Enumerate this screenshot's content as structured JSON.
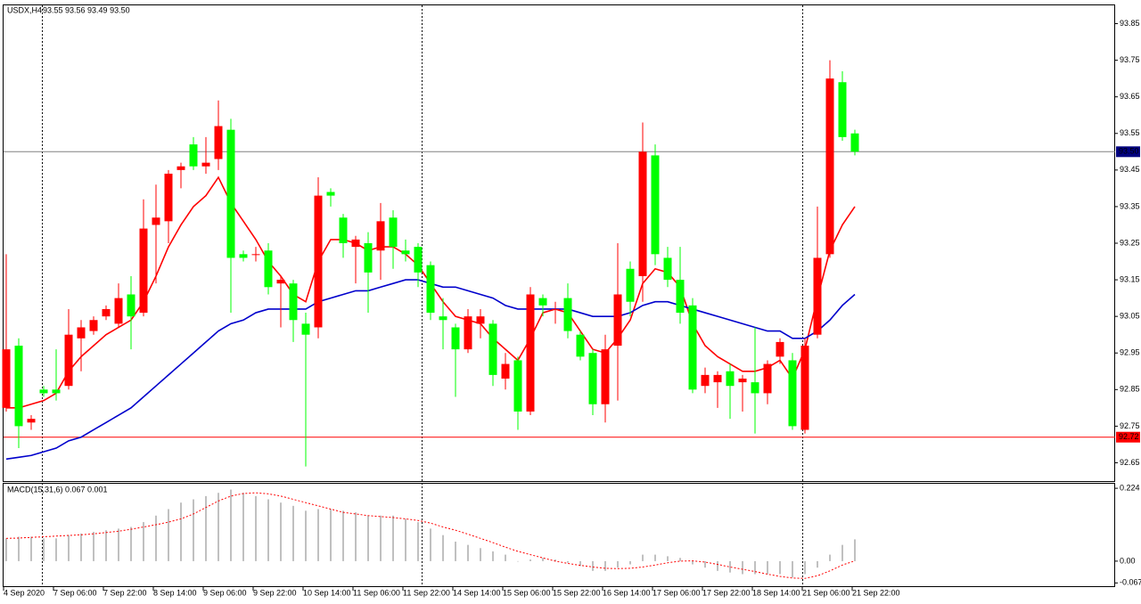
{
  "chart_data": [
    {
      "type": "candlestick",
      "title": "USDX,H4",
      "info": "93.55 93.56 93.49 93.50",
      "up_color": "#ff0000",
      "down_color": "#00ff00",
      "categories": [
        "4 Sep 2020",
        null,
        null,
        null,
        "7 Sep 06:00",
        null,
        null,
        null,
        "7 Sep 22:00",
        null,
        null,
        null,
        "8 Sep 14:00",
        null,
        null,
        null,
        "9 Sep 06:00",
        null,
        null,
        null,
        "9 Sep 22:00",
        null,
        null,
        null,
        "10 Sep 14:00",
        null,
        null,
        null,
        "11 Sep 06:00",
        null,
        null,
        null,
        "11 Sep 22:00",
        null,
        null,
        null,
        "14 Sep 14:00",
        null,
        null,
        null,
        "15 Sep 06:00",
        null,
        null,
        null,
        "15 Sep 22:00",
        null,
        null,
        null,
        "16 Sep 14:00",
        null,
        null,
        null,
        "17 Sep 06:00",
        null,
        null,
        null,
        "17 Sep 22:00",
        null,
        null,
        null,
        "18 Sep 14:00",
        null,
        null,
        null,
        "21 Sep 06:00",
        null,
        null,
        null,
        "21 Sep 22:00"
      ],
      "candles": [
        [
          92.8,
          93.22,
          92.79,
          92.96
        ],
        [
          92.97,
          92.99,
          92.69,
          92.75
        ],
        [
          92.76,
          92.78,
          92.74,
          92.77
        ],
        [
          92.85,
          92.86,
          92.83,
          92.84
        ],
        [
          92.85,
          92.96,
          92.82,
          92.84
        ],
        [
          92.86,
          93.07,
          92.85,
          93.0
        ],
        [
          92.99,
          93.04,
          92.9,
          93.02
        ],
        [
          93.01,
          93.05,
          93.0,
          93.04
        ],
        [
          93.05,
          93.08,
          93.04,
          93.07
        ],
        [
          93.03,
          93.14,
          93.02,
          93.1
        ],
        [
          93.11,
          93.16,
          92.96,
          93.05
        ],
        [
          93.06,
          93.37,
          93.05,
          93.29
        ],
        [
          93.3,
          93.41,
          93.14,
          93.32
        ],
        [
          93.31,
          93.45,
          93.25,
          93.44
        ],
        [
          93.45,
          93.47,
          93.4,
          93.46
        ],
        [
          93.52,
          93.54,
          93.45,
          93.46
        ],
        [
          93.46,
          93.54,
          93.44,
          93.47
        ],
        [
          93.48,
          93.64,
          93.45,
          93.57
        ],
        [
          93.56,
          93.59,
          93.06,
          93.21
        ],
        [
          93.22,
          93.23,
          93.2,
          93.21
        ],
        [
          93.22,
          93.24,
          93.2,
          93.22
        ],
        [
          93.23,
          93.25,
          93.11,
          93.13
        ],
        [
          93.14,
          93.16,
          93.02,
          93.15
        ],
        [
          93.14,
          93.15,
          92.98,
          93.04
        ],
        [
          93.03,
          93.06,
          92.64,
          93.0
        ],
        [
          93.02,
          93.43,
          92.99,
          93.38
        ],
        [
          93.39,
          93.4,
          93.35,
          93.38
        ],
        [
          93.32,
          93.33,
          93.21,
          93.25
        ],
        [
          93.24,
          93.27,
          93.14,
          93.26
        ],
        [
          93.25,
          93.28,
          93.06,
          93.17
        ],
        [
          93.23,
          93.36,
          93.15,
          93.31
        ],
        [
          93.32,
          93.34,
          93.18,
          93.24
        ],
        [
          93.23,
          93.26,
          93.2,
          93.22
        ],
        [
          93.24,
          93.25,
          93.13,
          93.17
        ],
        [
          93.19,
          93.2,
          93.04,
          93.06
        ],
        [
          93.05,
          93.1,
          92.96,
          93.04
        ],
        [
          93.02,
          93.03,
          92.83,
          92.96
        ],
        [
          92.96,
          93.07,
          92.95,
          93.05
        ],
        [
          93.03,
          93.07,
          92.99,
          93.05
        ],
        [
          93.03,
          93.04,
          92.86,
          92.89
        ],
        [
          92.88,
          92.95,
          92.85,
          92.92
        ],
        [
          92.93,
          92.94,
          92.74,
          92.79
        ],
        [
          92.79,
          93.13,
          92.78,
          93.11
        ],
        [
          93.1,
          93.11,
          93.05,
          93.08
        ],
        [
          93.07,
          93.09,
          93.03,
          93.07
        ],
        [
          93.1,
          93.14,
          92.99,
          93.01
        ],
        [
          93.0,
          93.01,
          92.93,
          92.94
        ],
        [
          92.95,
          92.96,
          92.78,
          92.81
        ],
        [
          92.81,
          93.0,
          92.76,
          92.96
        ],
        [
          92.97,
          93.25,
          92.82,
          93.11
        ],
        [
          93.18,
          93.2,
          93.05,
          93.09
        ],
        [
          93.16,
          93.58,
          93.09,
          93.5
        ],
        [
          93.49,
          93.52,
          93.19,
          93.22
        ],
        [
          93.21,
          93.24,
          93.13,
          93.15
        ],
        [
          93.15,
          93.24,
          93.03,
          93.06
        ],
        [
          93.08,
          93.1,
          92.84,
          92.85
        ],
        [
          92.86,
          92.91,
          92.84,
          92.89
        ],
        [
          92.87,
          92.9,
          92.8,
          92.89
        ],
        [
          92.9,
          92.92,
          92.77,
          92.86
        ],
        [
          92.87,
          92.89,
          92.79,
          92.88
        ],
        [
          92.87,
          93.02,
          92.73,
          92.84
        ],
        [
          92.84,
          92.93,
          92.81,
          92.92
        ],
        [
          92.94,
          92.99,
          92.92,
          92.98
        ],
        [
          92.93,
          92.95,
          92.74,
          92.75
        ],
        [
          92.74,
          92.99,
          92.73,
          92.97
        ],
        [
          93.0,
          93.35,
          92.99,
          93.21
        ],
        [
          93.22,
          93.75,
          93.21,
          93.7
        ],
        [
          93.69,
          93.72,
          93.53,
          93.54
        ],
        [
          93.55,
          93.56,
          93.49,
          93.5
        ]
      ],
      "lines": [
        {
          "color": "#ff0000",
          "values": [
            92.8,
            92.8,
            92.81,
            92.82,
            92.84,
            92.9,
            92.94,
            92.97,
            93.0,
            93.02,
            93.04,
            93.09,
            93.16,
            93.24,
            93.3,
            93.35,
            93.38,
            93.43,
            93.36,
            93.31,
            93.26,
            93.2,
            93.16,
            93.11,
            93.09,
            93.2,
            93.26,
            93.26,
            93.25,
            93.23,
            93.24,
            93.24,
            93.22,
            93.19,
            93.14,
            93.09,
            93.05,
            93.04,
            93.03,
            92.99,
            92.96,
            92.93,
            92.99,
            93.06,
            93.07,
            93.06,
            93.01,
            92.96,
            92.95,
            92.99,
            93.04,
            93.14,
            93.18,
            93.17,
            93.13,
            93.03,
            92.97,
            92.94,
            92.92,
            92.9,
            92.9,
            92.91,
            92.93,
            92.88,
            92.96,
            93.1,
            93.23,
            93.3,
            93.35
          ]
        },
        {
          "color": "#0000cc",
          "values": [
            92.66,
            92.665,
            92.67,
            92.68,
            92.69,
            92.71,
            92.72,
            92.74,
            92.76,
            92.78,
            92.8,
            92.83,
            92.86,
            92.89,
            92.92,
            92.95,
            92.98,
            93.01,
            93.03,
            93.04,
            93.06,
            93.07,
            93.07,
            93.07,
            93.07,
            93.09,
            93.1,
            93.11,
            93.12,
            93.12,
            93.13,
            93.14,
            93.15,
            93.15,
            93.14,
            93.13,
            93.13,
            93.12,
            93.11,
            93.1,
            93.08,
            93.07,
            93.07,
            93.07,
            93.07,
            93.07,
            93.06,
            93.05,
            93.05,
            93.05,
            93.06,
            93.08,
            93.09,
            93.09,
            93.08,
            93.07,
            93.06,
            93.05,
            93.04,
            93.03,
            93.02,
            93.01,
            93.01,
            92.99,
            92.99,
            93.01,
            93.04,
            93.08,
            93.11
          ]
        }
      ],
      "hlines": [
        {
          "value": 93.5,
          "label": "93.50",
          "color": "#808080",
          "box_color": "#000080"
        },
        {
          "value": 92.72,
          "label": "92.72",
          "color": "#ff0000",
          "box_color": "#ff0000"
        }
      ],
      "ylim": [
        92.6,
        93.9
      ],
      "yticks": [
        93.85,
        93.75,
        93.65,
        93.55,
        93.45,
        93.35,
        93.25,
        93.15,
        93.05,
        92.95,
        92.85,
        92.75,
        92.65
      ]
    },
    {
      "type": "macd",
      "title": "MACD(15,31,6) 0.067 0.001",
      "histogram": {
        "color": "#c0c0c0",
        "values": [
          0.07,
          0.075,
          0.075,
          0.07,
          0.07,
          0.08,
          0.085,
          0.09,
          0.095,
          0.1,
          0.105,
          0.12,
          0.14,
          0.16,
          0.18,
          0.19,
          0.2,
          0.21,
          0.22,
          0.21,
          0.2,
          0.19,
          0.18,
          0.17,
          0.155,
          0.16,
          0.16,
          0.155,
          0.15,
          0.14,
          0.14,
          0.14,
          0.13,
          0.12,
          0.1,
          0.08,
          0.06,
          0.05,
          0.04,
          0.03,
          0.02,
          0.0,
          0.005,
          0.01,
          0.005,
          -0.005,
          -0.015,
          -0.03,
          -0.03,
          -0.02,
          -0.01,
          0.02,
          0.02,
          0.015,
          0.01,
          -0.01,
          -0.02,
          -0.03,
          -0.035,
          -0.04,
          -0.04,
          -0.04,
          -0.04,
          -0.05,
          -0.04,
          -0.02,
          0.02,
          0.05,
          0.067
        ]
      },
      "signal": {
        "color": "#ff0000",
        "values": [
          0.07,
          0.071,
          0.073,
          0.075,
          0.077,
          0.079,
          0.081,
          0.084,
          0.088,
          0.092,
          0.098,
          0.105,
          0.112,
          0.12,
          0.13,
          0.145,
          0.165,
          0.185,
          0.2,
          0.208,
          0.21,
          0.207,
          0.2,
          0.19,
          0.18,
          0.17,
          0.16,
          0.15,
          0.145,
          0.14,
          0.137,
          0.134,
          0.13,
          0.125,
          0.117,
          0.105,
          0.095,
          0.083,
          0.07,
          0.057,
          0.043,
          0.03,
          0.02,
          0.01,
          0.0,
          -0.007,
          -0.013,
          -0.018,
          -0.022,
          -0.023,
          -0.022,
          -0.018,
          -0.012,
          -0.005,
          0.0,
          0.001,
          -0.003,
          -0.01,
          -0.018,
          -0.025,
          -0.032,
          -0.04,
          -0.047,
          -0.052,
          -0.053,
          -0.045,
          -0.03,
          -0.012,
          0.001
        ]
      },
      "ylim": [
        -0.077,
        0.238
      ],
      "yticks": [
        0.224,
        {
          "value": 0,
          "label": "0.00"
        },
        -0.067
      ]
    }
  ]
}
